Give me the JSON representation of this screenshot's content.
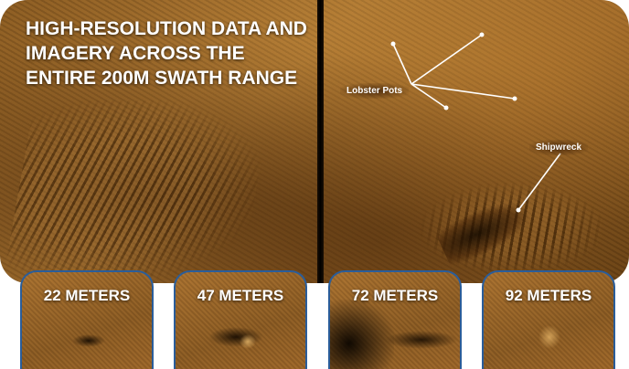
{
  "headline": "HIGH-RESOLUTION DATA AND IMAGERY ACROSS THE ENTIRE 200M SWATH RANGE",
  "callouts": {
    "lobster_pots": "Lobster Pots",
    "shipwreck": "Shipwreck"
  },
  "panels": [
    {
      "label": "22 METERS"
    },
    {
      "label": "47 METERS"
    },
    {
      "label": "72 METERS"
    },
    {
      "label": "92 METERS"
    }
  ],
  "colors": {
    "sonar_amber": "#a8702e",
    "panel_border": "#2a5d9a",
    "text": "#ffffff"
  }
}
